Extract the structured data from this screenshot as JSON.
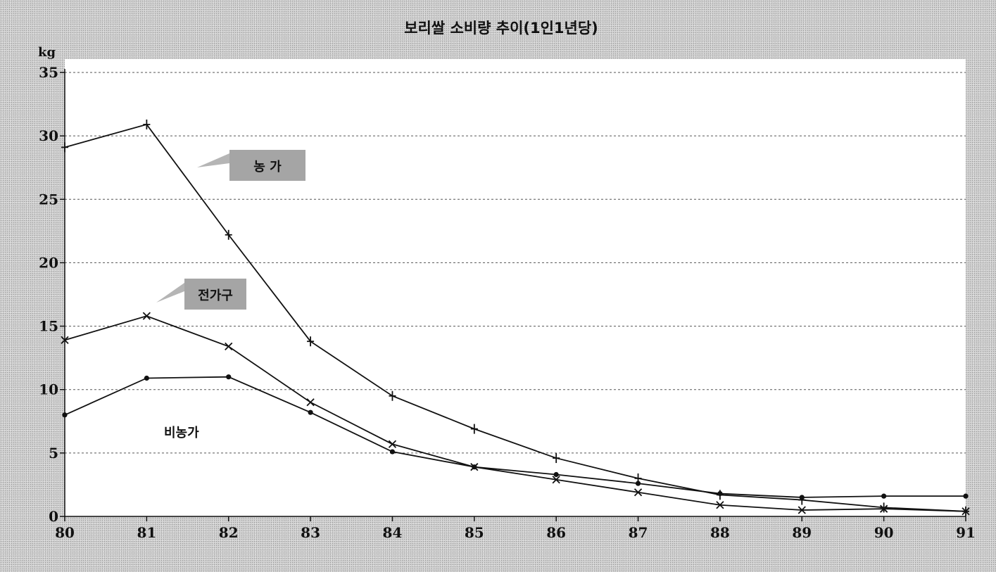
{
  "chart_data": {
    "type": "line",
    "title": "보리쌀 소비량 추이(1인1년당)",
    "ylabel": "kg",
    "xlabel": "",
    "x": [
      "80",
      "81",
      "82",
      "83",
      "84",
      "85",
      "86",
      "87",
      "88",
      "89",
      "90",
      "91"
    ],
    "ylim": [
      0,
      35
    ],
    "yticks": [
      0,
      5,
      10,
      15,
      20,
      25,
      30,
      35
    ],
    "grid": true,
    "series": [
      {
        "name": "농 가",
        "marker": "plus",
        "values": [
          29.1,
          30.9,
          22.2,
          13.8,
          9.5,
          6.9,
          4.6,
          3.0,
          1.7,
          1.3,
          0.7,
          0.4
        ]
      },
      {
        "name": "전가구",
        "marker": "x",
        "values": [
          13.9,
          15.8,
          13.4,
          9.0,
          5.7,
          3.9,
          2.9,
          1.9,
          0.9,
          0.5,
          0.6,
          0.4
        ]
      },
      {
        "name": "비농가",
        "marker": "dot",
        "values": [
          8.0,
          10.9,
          11.0,
          8.2,
          5.1,
          3.9,
          3.3,
          2.6,
          1.8,
          1.5,
          1.6,
          1.6
        ]
      }
    ]
  }
}
